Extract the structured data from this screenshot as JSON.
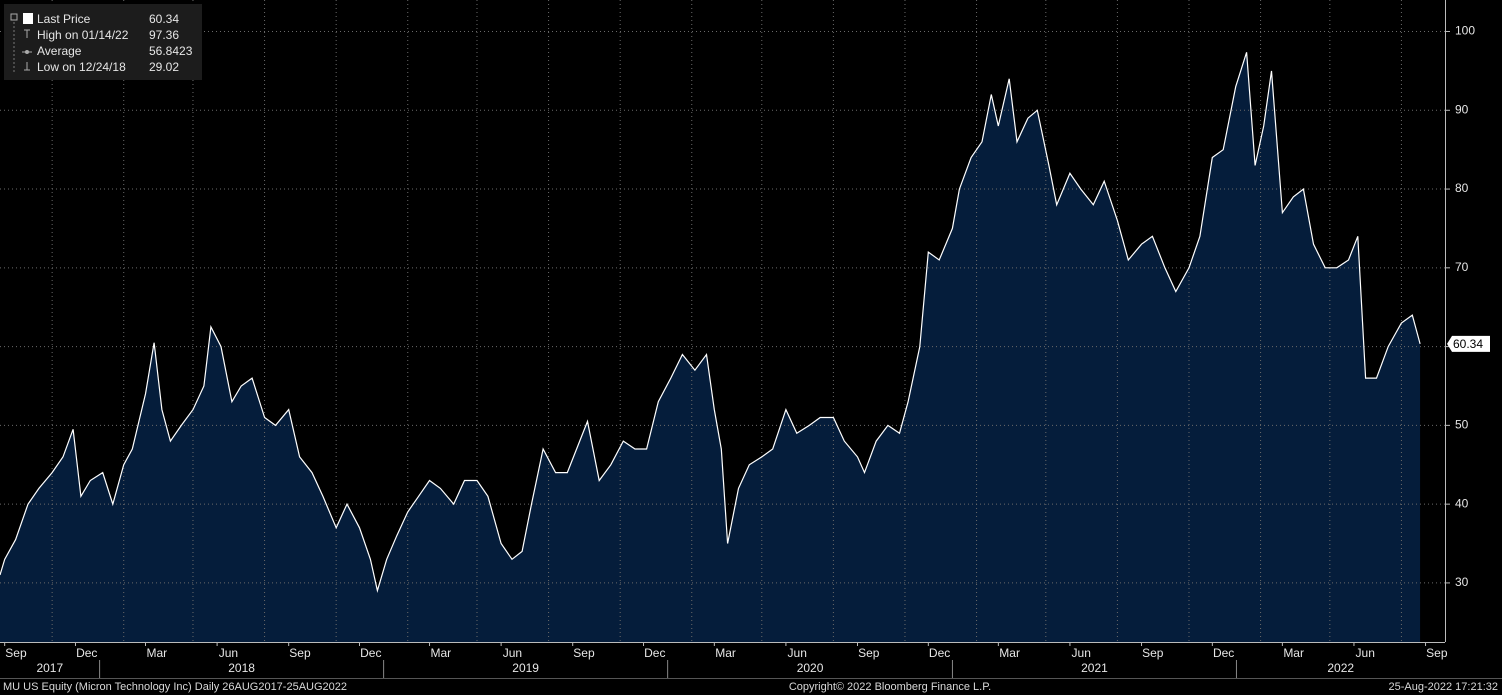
{
  "chart_data": {
    "type": "area",
    "legend": [
      {
        "label": "Last Price",
        "value": 60.34
      },
      {
        "label": "High on 01/14/22",
        "value": 97.36
      },
      {
        "label": "Average",
        "value": 56.8423
      },
      {
        "label": "Low on 12/24/18",
        "value": 29.02
      }
    ],
    "footer_left": "MU US Equity (Micron Technology Inc)  Daily 26AUG2017-25AUG2022",
    "footer_center": "Copyright© 2022 Bloomberg Finance L.P.",
    "footer_right": "25-Aug-2022 17:21:32",
    "line_color": "#ffffff",
    "fill_color": "#051d3b",
    "grid": true,
    "xlim": [
      "2017-08-26",
      "2022-09-26"
    ],
    "ylim": [
      22.5,
      104
    ],
    "yticks": [
      30,
      40,
      50,
      60,
      70,
      80,
      90,
      100
    ],
    "xticks": [
      {
        "value": "2017-09",
        "label": "Sep"
      },
      {
        "value": "2017-12",
        "label": "Dec"
      },
      {
        "value": "2018-03",
        "label": "Mar"
      },
      {
        "value": "2018-06",
        "label": "Jun"
      },
      {
        "value": "2018-09",
        "label": "Sep"
      },
      {
        "value": "2018-12",
        "label": "Dec"
      },
      {
        "value": "2019-03",
        "label": "Mar"
      },
      {
        "value": "2019-06",
        "label": "Jun"
      },
      {
        "value": "2019-09",
        "label": "Sep"
      },
      {
        "value": "2019-12",
        "label": "Dec"
      },
      {
        "value": "2020-03",
        "label": "Mar"
      },
      {
        "value": "2020-06",
        "label": "Jun"
      },
      {
        "value": "2020-09",
        "label": "Sep"
      },
      {
        "value": "2020-12",
        "label": "Dec"
      },
      {
        "value": "2021-03",
        "label": "Mar"
      },
      {
        "value": "2021-06",
        "label": "Jun"
      },
      {
        "value": "2021-09",
        "label": "Sep"
      },
      {
        "value": "2021-12",
        "label": "Dec"
      },
      {
        "value": "2022-03",
        "label": "Mar"
      },
      {
        "value": "2022-06",
        "label": "Jun"
      },
      {
        "value": "2022-09",
        "label": "Sep"
      }
    ],
    "years": [
      "2017",
      "2018",
      "2019",
      "2020",
      "2021",
      "2022"
    ],
    "x": [
      "2017-08-26",
      "2017-09-01",
      "2017-09-15",
      "2017-10-01",
      "2017-10-15",
      "2017-11-01",
      "2017-11-15",
      "2017-11-28",
      "2017-12-08",
      "2017-12-20",
      "2018-01-05",
      "2018-01-18",
      "2018-02-01",
      "2018-02-12",
      "2018-03-01",
      "2018-03-12",
      "2018-03-22",
      "2018-04-02",
      "2018-04-16",
      "2018-05-01",
      "2018-05-15",
      "2018-05-24",
      "2018-06-06",
      "2018-06-20",
      "2018-07-02",
      "2018-07-16",
      "2018-08-01",
      "2018-08-15",
      "2018-09-01",
      "2018-09-15",
      "2018-10-01",
      "2018-10-15",
      "2018-11-01",
      "2018-11-15",
      "2018-12-01",
      "2018-12-15",
      "2018-12-24",
      "2019-01-05",
      "2019-01-18",
      "2019-02-01",
      "2019-02-15",
      "2019-03-01",
      "2019-03-15",
      "2019-04-01",
      "2019-04-15",
      "2019-05-01",
      "2019-05-15",
      "2019-06-01",
      "2019-06-15",
      "2019-06-28",
      "2019-07-10",
      "2019-07-25",
      "2019-08-10",
      "2019-08-25",
      "2019-09-10",
      "2019-09-20",
      "2019-10-05",
      "2019-10-20",
      "2019-11-05",
      "2019-11-20",
      "2019-12-05",
      "2019-12-20",
      "2020-01-05",
      "2020-01-20",
      "2020-02-05",
      "2020-02-20",
      "2020-03-01",
      "2020-03-10",
      "2020-03-18",
      "2020-04-01",
      "2020-04-15",
      "2020-05-01",
      "2020-05-15",
      "2020-06-01",
      "2020-06-15",
      "2020-07-01",
      "2020-07-15",
      "2020-08-01",
      "2020-08-15",
      "2020-09-01",
      "2020-09-10",
      "2020-09-25",
      "2020-10-10",
      "2020-10-25",
      "2020-11-05",
      "2020-11-20",
      "2020-12-01",
      "2020-12-15",
      "2021-01-01",
      "2021-01-10",
      "2021-01-25",
      "2021-02-08",
      "2021-02-20",
      "2021-03-01",
      "2021-03-15",
      "2021-03-25",
      "2021-04-08",
      "2021-04-20",
      "2021-05-05",
      "2021-05-15",
      "2021-06-01",
      "2021-06-15",
      "2021-07-01",
      "2021-07-15",
      "2021-08-01",
      "2021-08-15",
      "2021-09-01",
      "2021-09-15",
      "2021-10-01",
      "2021-10-15",
      "2021-11-01",
      "2021-11-15",
      "2021-12-01",
      "2021-12-15",
      "2021-12-31",
      "2022-01-14",
      "2022-01-25",
      "2022-02-05",
      "2022-02-15",
      "2022-03-01",
      "2022-03-15",
      "2022-03-28",
      "2022-04-10",
      "2022-04-25",
      "2022-05-10",
      "2022-05-25",
      "2022-06-06",
      "2022-06-16",
      "2022-06-30",
      "2022-07-15",
      "2022-08-01",
      "2022-08-15",
      "2022-08-25"
    ],
    "series": [
      {
        "name": "Last Price",
        "values": [
          31,
          33,
          35.5,
          40,
          42,
          44,
          46,
          49.5,
          41,
          43,
          44,
          40,
          45,
          47,
          54,
          60.5,
          52,
          48,
          50,
          52,
          55,
          62.5,
          60,
          53,
          55,
          56,
          51,
          50,
          52,
          46,
          44,
          41,
          37,
          40,
          37,
          33,
          29.02,
          33,
          36,
          39,
          41,
          43,
          42,
          40,
          43,
          43,
          41,
          35,
          33,
          34,
          40,
          47,
          44,
          44,
          48,
          50.5,
          43,
          45,
          48,
          47,
          47,
          53,
          56,
          59,
          57,
          59,
          52,
          47,
          35,
          42,
          45,
          46,
          47,
          52,
          49,
          50,
          51,
          51,
          48,
          46,
          44,
          48,
          50,
          49,
          53,
          60,
          72,
          71,
          75,
          80,
          84,
          86,
          92,
          88,
          94,
          86,
          89,
          90,
          83,
          78,
          82,
          80,
          78,
          81,
          76,
          71,
          73,
          74,
          70,
          67,
          70,
          74,
          84,
          85,
          93,
          97.36,
          83,
          88,
          95,
          77,
          79,
          80,
          73,
          70,
          70,
          71,
          74,
          56,
          56,
          60,
          63,
          64,
          60.34
        ]
      }
    ]
  }
}
